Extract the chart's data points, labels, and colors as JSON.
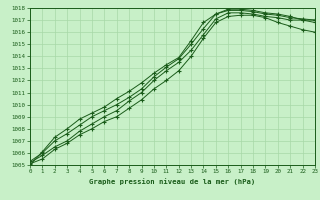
{
  "title": "Graphe pression niveau de la mer (hPa)",
  "bg_color": "#c8f0c8",
  "grid_color": "#a8d8a8",
  "line_color": "#1a5c1a",
  "xlim": [
    0,
    23
  ],
  "ylim": [
    1005,
    1018
  ],
  "xticks": [
    0,
    1,
    2,
    3,
    4,
    5,
    6,
    7,
    8,
    9,
    10,
    11,
    12,
    13,
    14,
    15,
    16,
    17,
    18,
    19,
    20,
    21,
    22,
    23
  ],
  "yticks": [
    1005,
    1006,
    1007,
    1008,
    1009,
    1010,
    1011,
    1012,
    1013,
    1014,
    1015,
    1016,
    1017,
    1018
  ],
  "series": [
    [
      1005.3,
      1006.0,
      1007.0,
      1007.6,
      1008.3,
      1009.0,
      1009.5,
      1010.0,
      1010.6,
      1011.3,
      1012.3,
      1013.1,
      1013.8,
      1015.0,
      1016.3,
      1017.5,
      1017.8,
      1017.8,
      1017.7,
      1017.5,
      1017.4,
      1017.2,
      1017.1,
      1017.0
    ],
    [
      1005.2,
      1005.8,
      1006.5,
      1007.0,
      1007.8,
      1008.4,
      1009.0,
      1009.5,
      1010.3,
      1011.0,
      1012.0,
      1012.8,
      1013.5,
      1014.5,
      1015.8,
      1017.1,
      1017.6,
      1017.6,
      1017.5,
      1017.3,
      1017.2,
      1017.0,
      1017.0,
      1017.0
    ],
    [
      1005.0,
      1006.1,
      1007.3,
      1008.0,
      1008.8,
      1009.3,
      1009.8,
      1010.5,
      1011.1,
      1011.8,
      1012.6,
      1013.3,
      1013.9,
      1015.3,
      1016.8,
      1017.5,
      1017.9,
      1017.9,
      1017.8,
      1017.6,
      1017.5,
      1017.3,
      1017.0,
      1016.8
    ],
    [
      1005.1,
      1005.5,
      1006.3,
      1006.8,
      1007.5,
      1008.0,
      1008.6,
      1009.0,
      1009.7,
      1010.4,
      1011.3,
      1012.0,
      1012.8,
      1014.0,
      1015.5,
      1016.8,
      1017.3,
      1017.4,
      1017.4,
      1017.2,
      1016.8,
      1016.5,
      1016.2,
      1016.0
    ]
  ]
}
